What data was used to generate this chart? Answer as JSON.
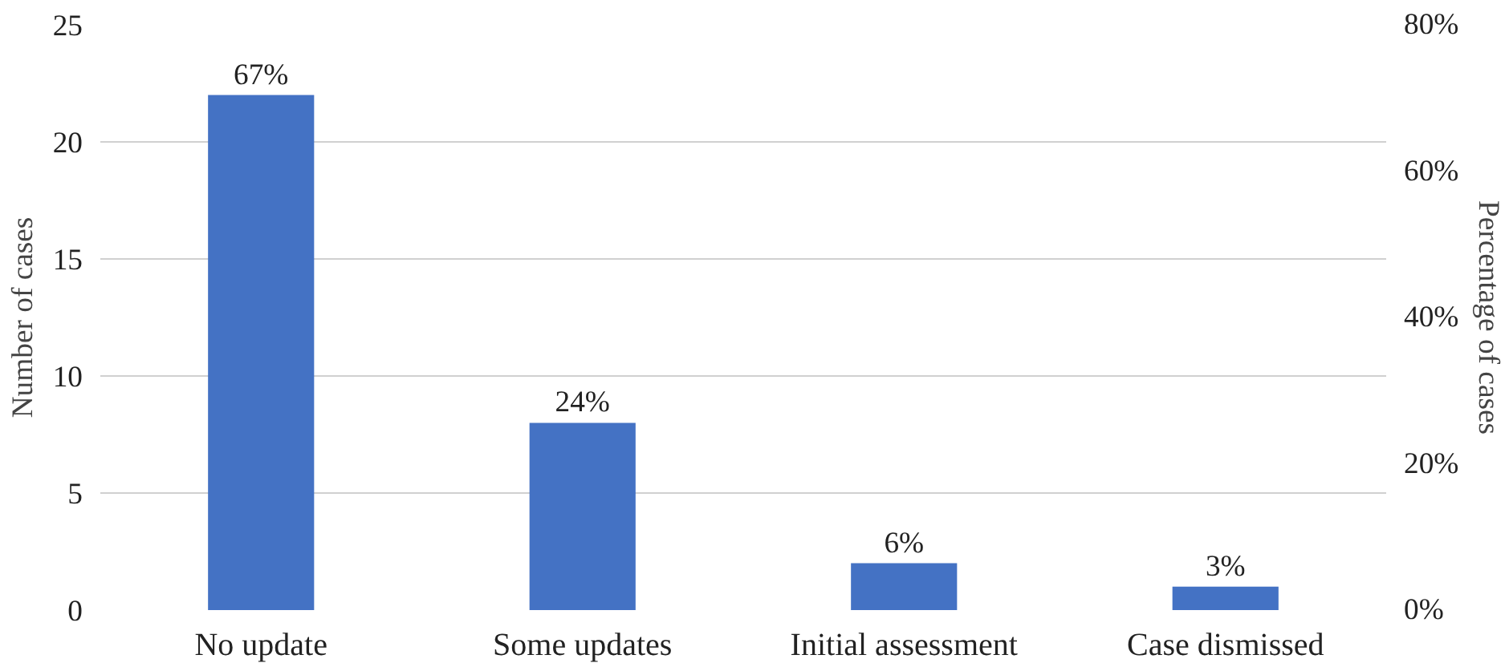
{
  "chart_data": {
    "type": "bar",
    "categories": [
      "No update",
      "Some updates",
      "Initial assessment",
      "Case dismissed"
    ],
    "values": [
      22,
      8,
      2,
      1
    ],
    "annotations": [
      {
        "text": "67%",
        "x": "No update",
        "y": 22
      },
      {
        "text": "24%",
        "x": "Some updates",
        "y": 8
      },
      {
        "text": "6%",
        "x": "Initial assessment",
        "y": 2
      },
      {
        "text": "3%",
        "x": "Case dismissed",
        "y": 1
      }
    ],
    "color": "#4472c4",
    "ylabel": "Number of cases",
    "y2label": "Percentage of cases",
    "ylim": [
      0,
      25
    ],
    "yticks": [
      0,
      5,
      10,
      15,
      20,
      25
    ],
    "y2lim": [
      0,
      80
    ],
    "y2ticks": [
      {
        "value": 0,
        "label": "0%"
      },
      {
        "value": 20,
        "label": "20%"
      },
      {
        "value": 40,
        "label": "40%"
      },
      {
        "value": 60,
        "label": "60%"
      },
      {
        "value": 80,
        "label": "80%"
      }
    ],
    "grid": "y",
    "legend": false
  }
}
